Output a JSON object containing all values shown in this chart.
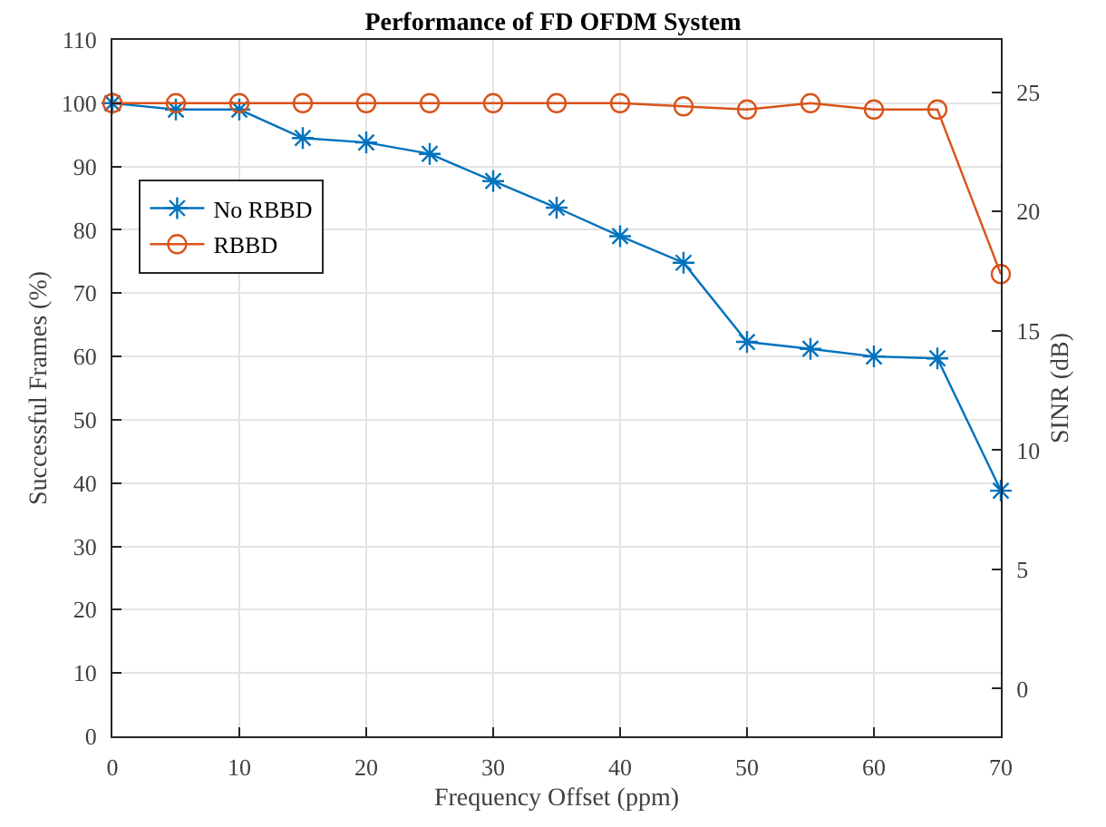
{
  "chart_data": {
    "type": "line",
    "title": "Performance of FD OFDM System",
    "xlabel": "Frequency Offset (ppm)",
    "ylabel": "Successful Frames (%)",
    "y2label": "SINR (dB)",
    "x": [
      0,
      5,
      10,
      15,
      20,
      25,
      30,
      35,
      40,
      45,
      50,
      55,
      60,
      65,
      70
    ],
    "series": [
      {
        "name": "No RBBD",
        "color": "#0072bd",
        "marker": "cross",
        "values": [
          100,
          99,
          99,
          94.5,
          93.8,
          92,
          87.7,
          83.5,
          79,
          74.8,
          62.3,
          61.2,
          60,
          59.7,
          38.8
        ]
      },
      {
        "name": "RBBD",
        "color": "#d95319",
        "marker": "circle",
        "values": [
          100,
          100,
          100,
          100,
          100,
          100,
          100,
          100,
          100,
          99.5,
          99,
          100,
          99,
          99,
          73
        ]
      }
    ],
    "xlim": [
      0,
      70
    ],
    "xticks": [
      0,
      10,
      20,
      30,
      40,
      50,
      60,
      70
    ],
    "ylim": [
      0,
      110
    ],
    "yticks": [
      0,
      10,
      20,
      30,
      40,
      50,
      60,
      70,
      80,
      90,
      100,
      110
    ],
    "y2lim": [
      -2,
      27.2
    ],
    "y2ticks": [
      0,
      5,
      10,
      15,
      20,
      25
    ],
    "grid": true,
    "legend": "top left",
    "line_style": "solid"
  }
}
